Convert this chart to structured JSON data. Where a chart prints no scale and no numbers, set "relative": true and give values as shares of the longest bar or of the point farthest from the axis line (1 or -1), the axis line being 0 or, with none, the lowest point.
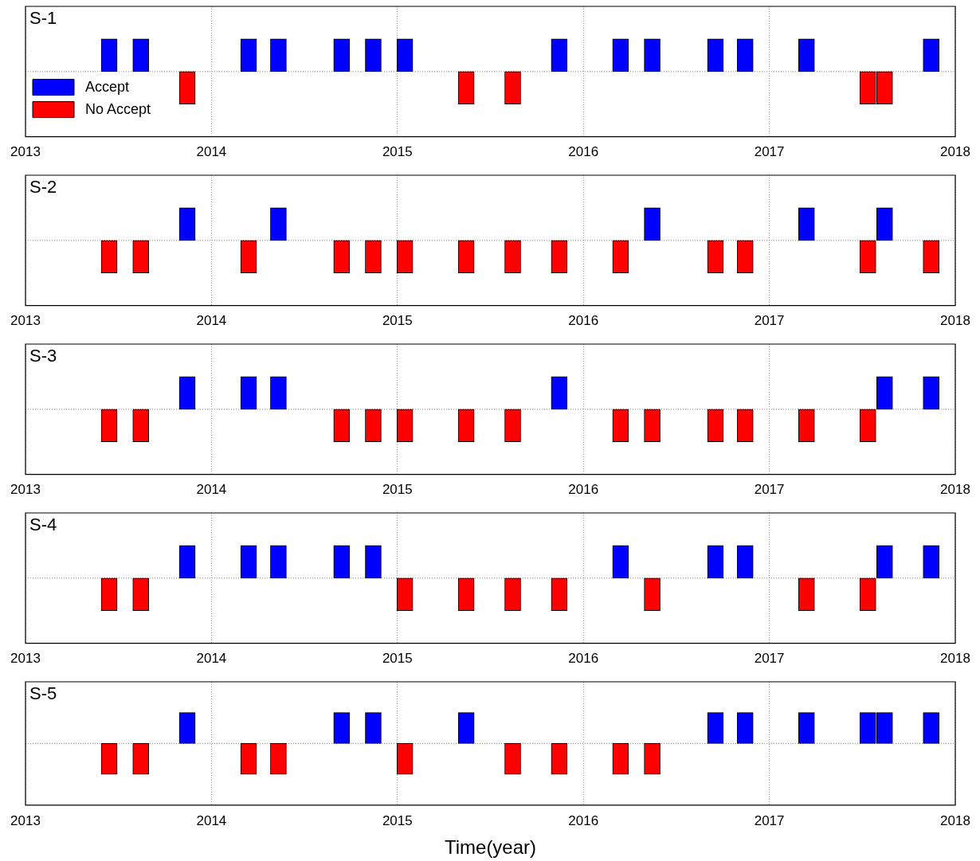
{
  "chart_data": [
    {
      "type": "bar",
      "title": "S-1",
      "relative": true,
      "ref_lines": [
        {
          "axis": "y",
          "value": 0,
          "color": "#888888",
          "line_style": "dotted"
        }
      ],
      "xlim": [
        2013,
        2018
      ],
      "xticks": [
        2013,
        2014,
        2015,
        2016,
        2017,
        2018
      ],
      "grid": "x",
      "legend": "bottom left",
      "series": [
        {
          "name": "Accept",
          "color": "#0000ff",
          "x": [
            2013.45,
            2013.62,
            2014.2,
            2014.36,
            2014.7,
            2014.87,
            2015.04,
            2015.87,
            2016.2,
            2016.37,
            2016.71,
            2016.87,
            2017.2,
            2017.87
          ],
          "values": [
            1,
            1,
            1,
            1,
            1,
            1,
            1,
            1,
            1,
            1,
            1,
            1,
            1,
            1
          ]
        },
        {
          "name": "No Accept",
          "color": "#ff0000",
          "x": [
            2013.87,
            2015.37,
            2015.62,
            2017.53,
            2017.62
          ],
          "values": [
            -1,
            -1,
            -1,
            -1,
            -1
          ]
        }
      ]
    },
    {
      "type": "bar",
      "title": "S-2",
      "relative": true,
      "ref_lines": [
        {
          "axis": "y",
          "value": 0,
          "color": "#888888",
          "line_style": "dotted"
        }
      ],
      "xlim": [
        2013,
        2018
      ],
      "xticks": [
        2013,
        2014,
        2015,
        2016,
        2017,
        2018
      ],
      "grid": "x",
      "series": [
        {
          "color": "#0000ff",
          "x": [
            2013.87,
            2014.36,
            2016.37,
            2017.2,
            2017.62
          ],
          "values": [
            1,
            1,
            1,
            1,
            1
          ]
        },
        {
          "color": "#ff0000",
          "x": [
            2013.45,
            2013.62,
            2014.2,
            2014.7,
            2014.87,
            2015.04,
            2015.37,
            2015.62,
            2015.87,
            2016.2,
            2016.71,
            2016.87,
            2017.53,
            2017.87
          ],
          "values": [
            -1,
            -1,
            -1,
            -1,
            -1,
            -1,
            -1,
            -1,
            -1,
            -1,
            -1,
            -1,
            -1,
            -1
          ]
        }
      ]
    },
    {
      "type": "bar",
      "title": "S-3",
      "relative": true,
      "ref_lines": [
        {
          "axis": "y",
          "value": 0,
          "color": "#888888",
          "line_style": "dotted"
        }
      ],
      "xlim": [
        2013,
        2018
      ],
      "xticks": [
        2013,
        2014,
        2015,
        2016,
        2017,
        2018
      ],
      "grid": "x",
      "series": [
        {
          "color": "#0000ff",
          "x": [
            2013.87,
            2014.2,
            2014.36,
            2015.87,
            2017.62,
            2017.87
          ],
          "values": [
            1,
            1,
            1,
            1,
            1,
            1
          ]
        },
        {
          "color": "#ff0000",
          "x": [
            2013.45,
            2013.62,
            2014.7,
            2014.87,
            2015.04,
            2015.37,
            2015.62,
            2016.2,
            2016.37,
            2016.71,
            2016.87,
            2017.2,
            2017.53
          ],
          "values": [
            -1,
            -1,
            -1,
            -1,
            -1,
            -1,
            -1,
            -1,
            -1,
            -1,
            -1,
            -1,
            -1
          ]
        }
      ]
    },
    {
      "type": "bar",
      "title": "S-4",
      "relative": true,
      "ref_lines": [
        {
          "axis": "y",
          "value": 0,
          "color": "#888888",
          "line_style": "dotted"
        }
      ],
      "xlim": [
        2013,
        2018
      ],
      "xticks": [
        2013,
        2014,
        2015,
        2016,
        2017,
        2018
      ],
      "grid": "x",
      "series": [
        {
          "color": "#0000ff",
          "x": [
            2013.87,
            2014.2,
            2014.36,
            2014.7,
            2014.87,
            2016.2,
            2016.71,
            2016.87,
            2017.62,
            2017.87
          ],
          "values": [
            1,
            1,
            1,
            1,
            1,
            1,
            1,
            1,
            1,
            1
          ]
        },
        {
          "color": "#ff0000",
          "x": [
            2013.45,
            2013.62,
            2015.04,
            2015.37,
            2015.62,
            2015.87,
            2016.37,
            2017.2,
            2017.53
          ],
          "values": [
            -1,
            -1,
            -1,
            -1,
            -1,
            -1,
            -1,
            -1,
            -1
          ]
        }
      ]
    },
    {
      "type": "bar",
      "title": "S-5",
      "relative": true,
      "ref_lines": [
        {
          "axis": "y",
          "value": 0,
          "color": "#888888",
          "line_style": "dotted"
        }
      ],
      "xlabel": "Time(year)",
      "xlim": [
        2013,
        2018
      ],
      "xticks": [
        2013,
        2014,
        2015,
        2016,
        2017,
        2018
      ],
      "grid": "x",
      "series": [
        {
          "color": "#0000ff",
          "x": [
            2013.87,
            2014.7,
            2014.87,
            2015.37,
            2016.71,
            2016.87,
            2017.2,
            2017.53,
            2017.62,
            2017.87
          ],
          "values": [
            1,
            1,
            1,
            1,
            1,
            1,
            1,
            1,
            1,
            1
          ]
        },
        {
          "color": "#ff0000",
          "x": [
            2013.45,
            2013.62,
            2014.2,
            2014.36,
            2015.04,
            2015.62,
            2015.87,
            2016.2,
            2016.37
          ],
          "values": [
            -1,
            -1,
            -1,
            -1,
            -1,
            -1,
            -1,
            -1,
            -1
          ]
        }
      ]
    }
  ]
}
